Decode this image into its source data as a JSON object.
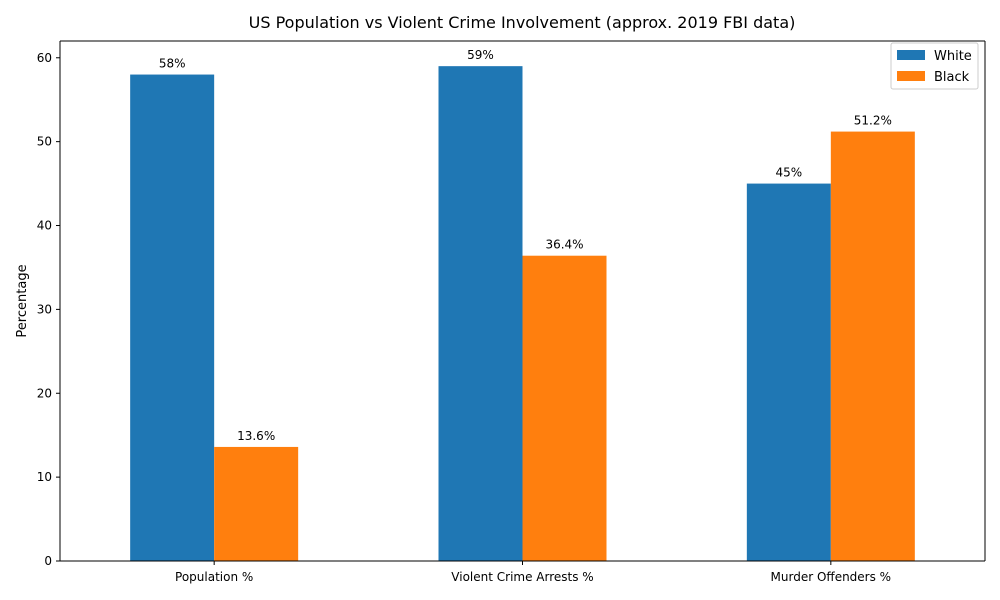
{
  "chart_data": {
    "type": "bar",
    "title": "US Population vs Violent Crime Involvement (approx. 2019 FBI data)",
    "xlabel": "",
    "ylabel": "Percentage",
    "categories": [
      "Population %",
      "Violent Crime Arrests %",
      "Murder Offenders %"
    ],
    "series": [
      {
        "name": "White",
        "color": "#1f77b4",
        "values": [
          58,
          59,
          45
        ],
        "labels": [
          "58%",
          "59%",
          "45%"
        ]
      },
      {
        "name": "Black",
        "color": "#ff7f0e",
        "values": [
          13.6,
          36.4,
          51.2
        ],
        "labels": [
          "13.6%",
          "36.4%",
          "51.2%"
        ]
      }
    ],
    "ylim": [
      0,
      62
    ],
    "yticks": [
      0,
      10,
      20,
      30,
      40,
      50,
      60
    ],
    "grid": false,
    "legend_position": "top-right"
  }
}
